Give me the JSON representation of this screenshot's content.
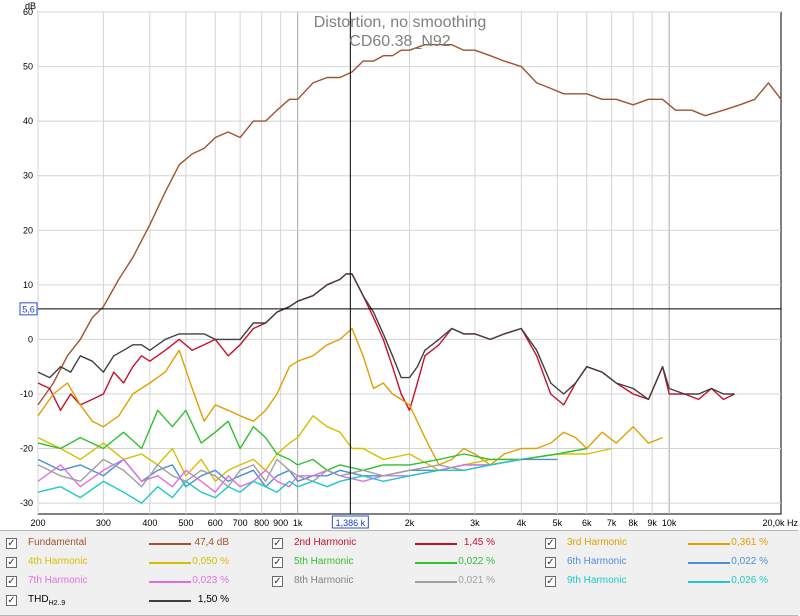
{
  "chart_data": {
    "type": "line",
    "title": "Distortion, no smoothing",
    "subtitle": "CD60.38_N92",
    "ylabel": "dB",
    "xunit": "Hz",
    "xscale": "log",
    "xlim": [
      200,
      20000
    ],
    "ylim": [
      -32,
      60
    ],
    "grid": true,
    "x_tick_labels": [
      "200",
      "300",
      "400",
      "500",
      "600",
      "700",
      "800",
      "900",
      "1k",
      "2k",
      "3k",
      "4k",
      "5k",
      "6k",
      "7k",
      "8k",
      "9k",
      "10k",
      "20,0k Hz"
    ],
    "y_tick_labels": [
      "60",
      "50",
      "40",
      "30",
      "20",
      "10",
      "0",
      "-10",
      "-20",
      "-30"
    ],
    "cursor": {
      "x_label": "1,386 k",
      "y_label": "5,6",
      "x": 1386,
      "y": 5.6
    },
    "series": [
      {
        "name": "Fundamental",
        "color": "#a0522d",
        "x": [
          200,
          220,
          240,
          260,
          280,
          300,
          330,
          360,
          400,
          440,
          480,
          520,
          560,
          600,
          650,
          700,
          760,
          820,
          880,
          950,
          1000,
          1100,
          1200,
          1300,
          1400,
          1500,
          1600,
          1700,
          1800,
          1900,
          2000,
          2200,
          2400,
          2600,
          2800,
          3000,
          3300,
          3600,
          4000,
          4400,
          4800,
          5200,
          5600,
          6000,
          6600,
          7200,
          8000,
          8800,
          9600,
          10400,
          11500,
          12500,
          14000,
          15500,
          17000,
          18500,
          20000
        ],
        "y": [
          -12,
          -8,
          -3,
          0,
          4,
          6,
          11,
          15,
          21,
          27,
          32,
          34,
          35,
          37,
          38,
          37,
          40,
          40,
          42,
          44,
          44,
          47,
          48,
          48,
          49,
          51,
          51,
          52,
          52,
          53,
          53,
          54,
          54,
          54,
          53,
          53,
          52,
          51,
          50,
          47,
          46,
          45,
          45,
          45,
          44,
          44,
          43,
          44,
          44,
          42,
          42,
          41,
          42,
          43,
          44,
          47,
          44
        ]
      },
      {
        "name": "2nd Harmonic",
        "color": "#c8102e",
        "value": "1,45 %",
        "x": [
          200,
          215,
          230,
          245,
          260,
          280,
          300,
          320,
          340,
          360,
          380,
          400,
          440,
          480,
          520,
          560,
          600,
          650,
          700,
          760,
          820,
          880,
          950,
          1000,
          1100,
          1200,
          1300,
          1350,
          1400,
          1450,
          1500,
          1600,
          1700,
          1800,
          1900,
          2000,
          2100,
          2200,
          2400,
          2600,
          2800,
          3000,
          3300,
          3600,
          4000,
          4400,
          4800,
          5200,
          5600,
          6000,
          6600,
          7200,
          8000,
          8800,
          9600,
          10000,
          11000,
          12000,
          13000,
          14000,
          15000
        ],
        "y": [
          -8,
          -9,
          -13,
          -10,
          -12,
          -11,
          -10,
          -6,
          -8,
          -5,
          -3,
          -4,
          -2,
          0,
          -2,
          -1,
          0,
          -3,
          -1,
          2,
          3,
          5,
          6,
          7,
          8,
          10,
          11,
          12,
          12,
          10,
          8,
          4,
          0,
          -5,
          -10,
          -13,
          -8,
          -3,
          -1,
          2,
          1,
          1,
          0,
          1,
          2,
          -3,
          -10,
          -12,
          -8,
          -5,
          -6,
          -8,
          -10,
          -11,
          -5,
          -10,
          -10,
          -11,
          -9,
          -11,
          -10
        ]
      },
      {
        "name": "3rd Harmonic",
        "color": "#e0a000",
        "value": "0,361 %",
        "x": [
          200,
          220,
          240,
          260,
          280,
          300,
          330,
          360,
          400,
          440,
          480,
          520,
          560,
          600,
          650,
          700,
          760,
          820,
          880,
          950,
          1000,
          1100,
          1200,
          1300,
          1400,
          1500,
          1600,
          1700,
          1800,
          1900,
          2000,
          2200,
          2400,
          2600,
          2800,
          3000,
          3300,
          3600,
          4000,
          4400,
          4800,
          5200,
          5600,
          6000,
          6600,
          7200,
          8000,
          8800,
          9600
        ],
        "y": [
          -14,
          -10,
          -8,
          -12,
          -15,
          -16,
          -14,
          -10,
          -8,
          -6,
          -2,
          -9,
          -15,
          -12,
          -13,
          -14,
          -15,
          -13,
          -10,
          -5,
          -4,
          -3,
          -1,
          0,
          2,
          -3,
          -9,
          -8,
          -10,
          -11,
          -12,
          -18,
          -23,
          -22,
          -20,
          -21,
          -23,
          -21,
          -20,
          -20,
          -19,
          -17,
          -18,
          -20,
          -17,
          -19,
          -16,
          -19,
          -18
        ]
      },
      {
        "name": "4th Harmonic",
        "color": "#d4c000",
        "value": "0,050 %",
        "x": [
          200,
          230,
          260,
          300,
          340,
          380,
          420,
          460,
          500,
          550,
          600,
          650,
          700,
          760,
          820,
          880,
          950,
          1000,
          1100,
          1200,
          1300,
          1400,
          1500,
          1700,
          2000,
          2400,
          2800,
          3300,
          4000,
          5000,
          6000,
          7000
        ],
        "y": [
          -18,
          -20,
          -22,
          -19,
          -22,
          -21,
          -23,
          -20,
          -25,
          -22,
          -26,
          -24,
          -23,
          -22,
          -24,
          -21,
          -19,
          -18,
          -14,
          -16,
          -17,
          -20,
          -20,
          -22,
          -21,
          -24,
          -23,
          -22,
          -22,
          -21,
          -21,
          -20
        ]
      },
      {
        "name": "5th Harmonic",
        "color": "#30c030",
        "value": "0,022 %",
        "x": [
          200,
          230,
          260,
          300,
          340,
          380,
          420,
          460,
          500,
          550,
          600,
          650,
          700,
          760,
          820,
          880,
          950,
          1000,
          1100,
          1200,
          1300,
          1500,
          1700,
          2000,
          2400,
          2800,
          3300,
          4000,
          5000,
          6000
        ],
        "y": [
          -19,
          -20,
          -18,
          -20,
          -17,
          -20,
          -13,
          -16,
          -13,
          -19,
          -17,
          -15,
          -20,
          -16,
          -18,
          -21,
          -22,
          -23,
          -22,
          -24,
          -23,
          -24,
          -23,
          -23,
          -22,
          -21,
          -22,
          -22,
          -21,
          -20
        ]
      },
      {
        "name": "6th Harmonic",
        "color": "#4a8fd8",
        "value": "0,022 %",
        "x": [
          200,
          230,
          260,
          300,
          340,
          380,
          420,
          460,
          500,
          550,
          600,
          650,
          700,
          760,
          820,
          880,
          950,
          1000,
          1100,
          1200,
          1300,
          1500,
          1700,
          2000,
          2400,
          2800,
          3300,
          4000,
          5000
        ],
        "y": [
          -22,
          -24,
          -23,
          -25,
          -22,
          -26,
          -24,
          -23,
          -27,
          -25,
          -24,
          -26,
          -25,
          -24,
          -27,
          -25,
          -24,
          -26,
          -25,
          -25,
          -24,
          -25,
          -25,
          -24,
          -24,
          -23,
          -23,
          -22,
          -22
        ]
      },
      {
        "name": "7th Harmonic",
        "color": "#e070e0",
        "value": "0,023 %",
        "x": [
          200,
          230,
          260,
          300,
          340,
          380,
          420,
          460,
          500,
          550,
          600,
          650,
          700,
          760,
          820,
          880,
          950,
          1000,
          1100,
          1200,
          1300,
          1500,
          1700,
          2000,
          2400,
          2800,
          3300,
          4000
        ],
        "y": [
          -26,
          -23,
          -27,
          -24,
          -22,
          -26,
          -25,
          -27,
          -24,
          -26,
          -28,
          -25,
          -27,
          -26,
          -24,
          -26,
          -27,
          -25,
          -25,
          -24,
          -25,
          -26,
          -25,
          -25,
          -24,
          -23,
          -23,
          -22
        ]
      },
      {
        "name": "8th Harmonic",
        "color": "#a0a0a0",
        "value": "0,021 %",
        "x": [
          200,
          230,
          260,
          300,
          340,
          380,
          420,
          460,
          500,
          550,
          600,
          650,
          700,
          760,
          820,
          880,
          950,
          1000,
          1100,
          1200,
          1300,
          1500,
          1700,
          2000,
          2400,
          2800,
          3300,
          4000
        ],
        "y": [
          -23,
          -25,
          -26,
          -22,
          -24,
          -27,
          -23,
          -25,
          -26,
          -24,
          -25,
          -27,
          -24,
          -23,
          -26,
          -22,
          -24,
          -25,
          -26,
          -24,
          -25,
          -24,
          -25,
          -24,
          -23,
          -24,
          -23,
          -22
        ]
      },
      {
        "name": "9th Harmonic",
        "color": "#20c8c8",
        "value": "0,026 %",
        "x": [
          200,
          230,
          260,
          300,
          340,
          380,
          420,
          460,
          500,
          550,
          600,
          650,
          700,
          760,
          820,
          880,
          950,
          1000,
          1100,
          1200,
          1300,
          1500,
          1700,
          2000,
          2400,
          2800,
          3300,
          4000
        ],
        "y": [
          -28,
          -27,
          -29,
          -26,
          -28,
          -30,
          -27,
          -29,
          -26,
          -28,
          -29,
          -27,
          -28,
          -26,
          -27,
          -28,
          -26,
          -27,
          -26,
          -27,
          -26,
          -25,
          -26,
          -25,
          -24,
          -24,
          -23,
          -22
        ]
      },
      {
        "name": "THD",
        "name_sub": "H2..9",
        "color": "#404040",
        "value": "1,50 %",
        "x": [
          200,
          215,
          230,
          245,
          260,
          280,
          300,
          320,
          340,
          360,
          380,
          400,
          440,
          480,
          520,
          560,
          600,
          650,
          700,
          760,
          820,
          880,
          950,
          1000,
          1100,
          1200,
          1300,
          1350,
          1400,
          1450,
          1500,
          1600,
          1700,
          1800,
          1900,
          2000,
          2100,
          2200,
          2400,
          2600,
          2800,
          3000,
          3300,
          3600,
          4000,
          4400,
          4800,
          5200,
          5600,
          6000,
          6600,
          7200,
          8000,
          8800,
          9600,
          10000,
          11000,
          12000,
          13000,
          14000,
          15000
        ],
        "y": [
          -6,
          -7,
          -5,
          -6,
          -3,
          -4,
          -6,
          -3,
          -2,
          -1,
          -1,
          -2,
          0,
          1,
          1,
          1,
          0,
          0,
          0,
          3,
          3,
          5,
          6,
          7,
          8,
          10,
          11,
          12,
          12,
          10,
          8,
          5,
          1,
          -3,
          -7,
          -7,
          -5,
          -2,
          0,
          2,
          1,
          1,
          0,
          1,
          2,
          -2,
          -8,
          -10,
          -8,
          -5,
          -6,
          -8,
          -9,
          -11,
          -5,
          -9,
          -10,
          -10,
          -9,
          -10,
          -10
        ]
      }
    ],
    "value_labels": {
      "Fundamental": "47,4 dB"
    }
  }
}
